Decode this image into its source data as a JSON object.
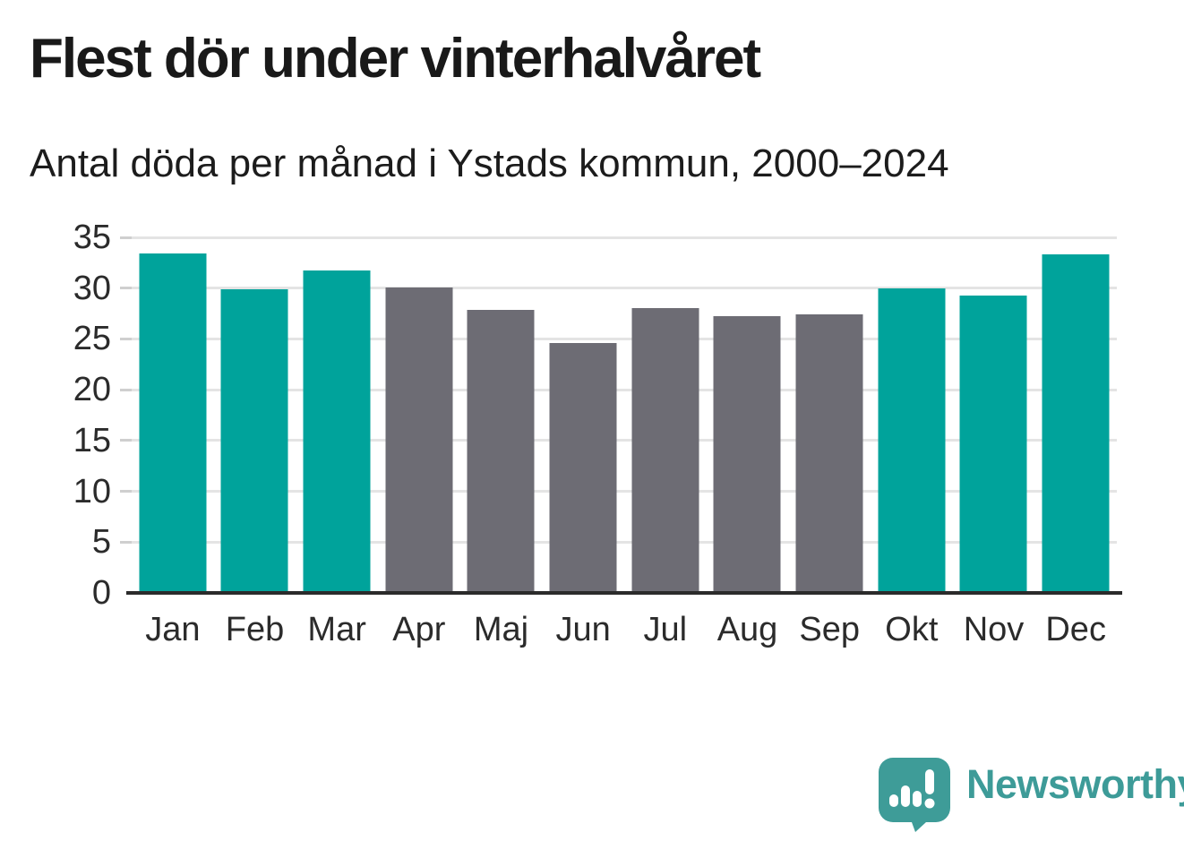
{
  "header": {
    "title": "Flest dör under vinterhalvåret",
    "subtitle": "Antal döda per månad i Ystads kommun, 2000–2024"
  },
  "chart_data": {
    "type": "bar",
    "title": "Flest dör under vinterhalvåret",
    "subtitle": "Antal döda per månad i Ystads kommun, 2000–2024",
    "categories": [
      "Jan",
      "Feb",
      "Mar",
      "Apr",
      "Maj",
      "Jun",
      "Jul",
      "Aug",
      "Sep",
      "Okt",
      "Nov",
      "Dec"
    ],
    "values": [
      33.4,
      29.9,
      31.7,
      30.1,
      27.9,
      24.6,
      28.0,
      27.2,
      27.4,
      30.0,
      29.3,
      33.3
    ],
    "bar_colors": [
      "teal",
      "teal",
      "teal",
      "gray",
      "gray",
      "gray",
      "gray",
      "gray",
      "gray",
      "teal",
      "teal",
      "teal"
    ],
    "colors": {
      "teal": "#00a39b",
      "gray": "#6d6c74",
      "gridline": "#e4e4e4",
      "axis": "#2b2b2b"
    },
    "xlabel": "",
    "ylabel": "",
    "ylim": [
      0,
      35
    ],
    "yticks": [
      0,
      5,
      10,
      15,
      20,
      25,
      30,
      35
    ],
    "grid": true,
    "legend": false
  },
  "footer": {
    "brand": "Newsworthy",
    "brand_color": "#3d9b98",
    "logo_icon": "speech-bubble-bar-chart-icon"
  }
}
